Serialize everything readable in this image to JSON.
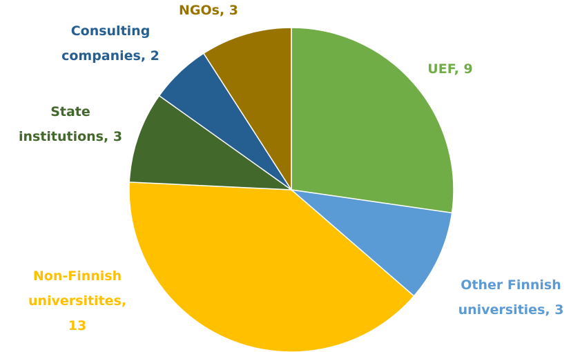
{
  "chart_data": {
    "type": "pie",
    "values": [
      9,
      3,
      13,
      3,
      2,
      3
    ],
    "value_labels": [
      [
        "UEF, 9"
      ],
      [
        "Other Finnish",
        "universities, 3"
      ],
      [
        "Non-Finnish",
        "universitites,",
        "13"
      ],
      [
        "State",
        "institutions, 3"
      ],
      [
        "Consulting",
        "companies, 2"
      ],
      [
        "NGOs, 3"
      ]
    ],
    "colors": [
      "#70ad47",
      "#5b9bd5",
      "#ffc000",
      "#43682b",
      "#255e91",
      "#997300"
    ]
  }
}
